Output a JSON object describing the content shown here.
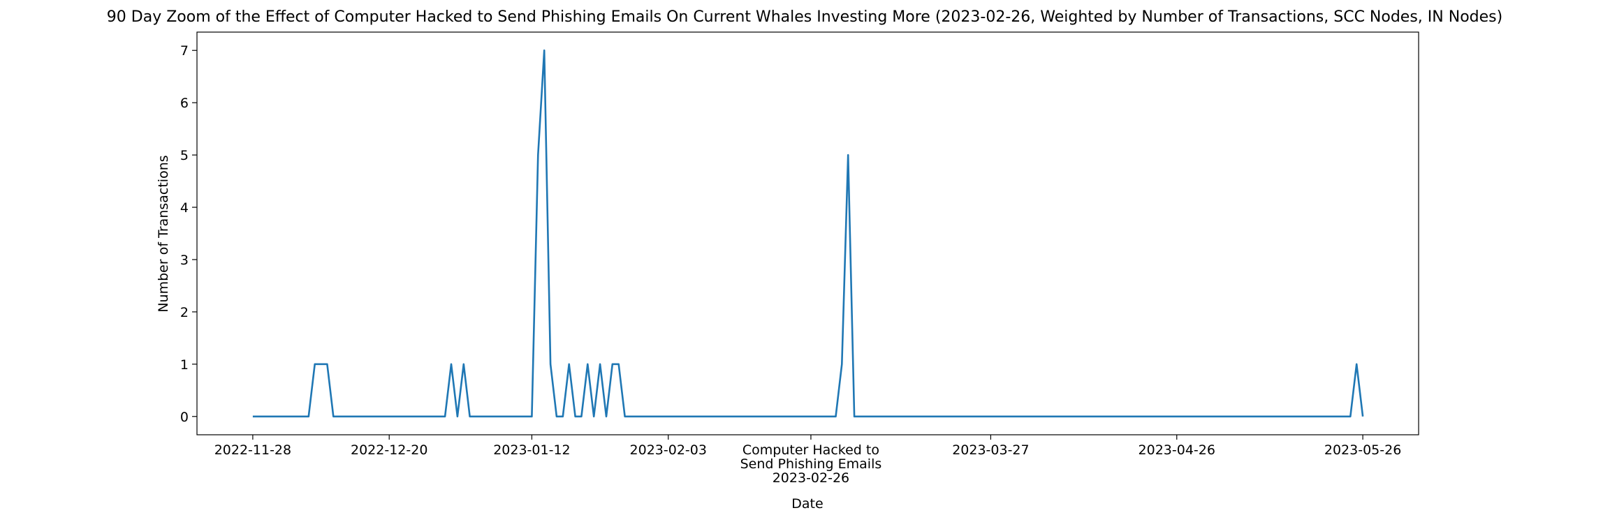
{
  "chart_data": {
    "type": "line",
    "title": "90 Day Zoom of the Effect of Computer Hacked to Send Phishing Emails On Current Whales Investing More (2023-02-26, Weighted by Number of Transactions, SCC Nodes, IN Nodes)",
    "xlabel": "Date",
    "ylabel": "Number of Transactions",
    "ylim": [
      -0.35,
      7.35
    ],
    "xlim": [
      "2022-11-19",
      "2023-06-04"
    ],
    "grid": false,
    "x_ticks": [
      "2022-11-28",
      "2022-12-20",
      "2023-01-12",
      "2023-02-03",
      "2023-03-27",
      "2023-04-26",
      "2023-05-26"
    ],
    "y_ticks": [
      0,
      1,
      2,
      3,
      4,
      5,
      6,
      7
    ],
    "event": {
      "date": "2023-02-26",
      "label_lines": [
        "Computer Hacked to",
        "Send Phishing Emails",
        "2023-02-26"
      ]
    },
    "series": [
      {
        "color": "#1f77b4",
        "points": [
          [
            "2022-11-28",
            0
          ],
          [
            "2022-12-07",
            0
          ],
          [
            "2022-12-08",
            1
          ],
          [
            "2022-12-10",
            1
          ],
          [
            "2022-12-11",
            0
          ],
          [
            "2022-12-29",
            0
          ],
          [
            "2022-12-30",
            1
          ],
          [
            "2022-12-31",
            0
          ],
          [
            "2023-01-01",
            1
          ],
          [
            "2023-01-02",
            0
          ],
          [
            "2023-01-12",
            0
          ],
          [
            "2023-01-13",
            5
          ],
          [
            "2023-01-14",
            7
          ],
          [
            "2023-01-15",
            1
          ],
          [
            "2023-01-16",
            0
          ],
          [
            "2023-01-17",
            0
          ],
          [
            "2023-01-18",
            1
          ],
          [
            "2023-01-19",
            0
          ],
          [
            "2023-01-20",
            0
          ],
          [
            "2023-01-21",
            1
          ],
          [
            "2023-01-22",
            0
          ],
          [
            "2023-01-23",
            1
          ],
          [
            "2023-01-24",
            0
          ],
          [
            "2023-01-25",
            1
          ],
          [
            "2023-01-26",
            1
          ],
          [
            "2023-01-27",
            0
          ],
          [
            "2023-03-02",
            0
          ],
          [
            "2023-03-03",
            1
          ],
          [
            "2023-03-04",
            5
          ],
          [
            "2023-03-05",
            0
          ],
          [
            "2023-05-24",
            0
          ],
          [
            "2023-05-25",
            1
          ],
          [
            "2023-05-26",
            0
          ]
        ]
      }
    ]
  }
}
